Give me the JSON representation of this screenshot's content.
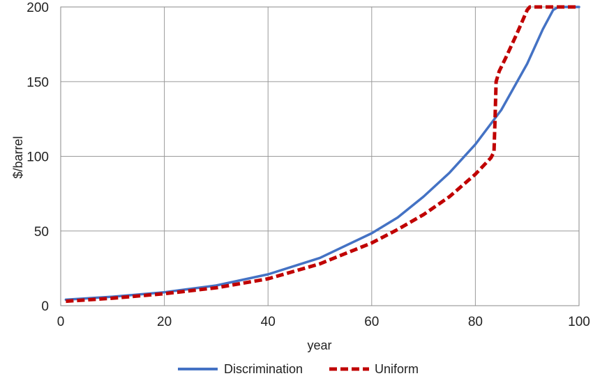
{
  "chart_data": {
    "type": "line",
    "title": "",
    "xlabel": "year",
    "ylabel": "$/barrel",
    "xlim": [
      0,
      100
    ],
    "ylim": [
      0,
      200
    ],
    "x_ticks": [
      0,
      20,
      40,
      60,
      80,
      100
    ],
    "y_ticks": [
      0,
      50,
      100,
      150,
      200
    ],
    "grid": true,
    "legend_position": "bottom",
    "series": [
      {
        "name": "Discrimination",
        "color": "#4472C4",
        "style": "solid",
        "points": [
          [
            1,
            4
          ],
          [
            10,
            6
          ],
          [
            20,
            9
          ],
          [
            30,
            13.5
          ],
          [
            40,
            21
          ],
          [
            50,
            32
          ],
          [
            60,
            48.5
          ],
          [
            65,
            59
          ],
          [
            70,
            73
          ],
          [
            75,
            89
          ],
          [
            80,
            108
          ],
          [
            85,
            131
          ],
          [
            90,
            162
          ],
          [
            93,
            185
          ],
          [
            95,
            198
          ],
          [
            96,
            200
          ],
          [
            100,
            200
          ]
        ]
      },
      {
        "name": "Uniform",
        "color": "#C00000",
        "style": "dashed",
        "points": [
          [
            1,
            3
          ],
          [
            10,
            5
          ],
          [
            20,
            8
          ],
          [
            30,
            12
          ],
          [
            40,
            18
          ],
          [
            50,
            28
          ],
          [
            60,
            42
          ],
          [
            65,
            51
          ],
          [
            70,
            61
          ],
          [
            75,
            73
          ],
          [
            80,
            88
          ],
          [
            83,
            99
          ],
          [
            83.6,
            103
          ],
          [
            83.8,
            125
          ],
          [
            84,
            150
          ],
          [
            84.6,
            157
          ],
          [
            86,
            167
          ],
          [
            88,
            182
          ],
          [
            90,
            198
          ],
          [
            90.5,
            200
          ],
          [
            100,
            200
          ]
        ]
      }
    ]
  }
}
